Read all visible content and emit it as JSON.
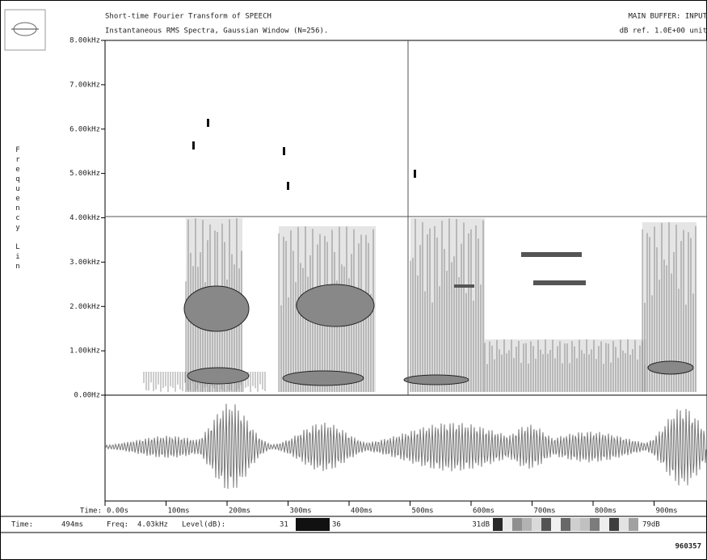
{
  "header": {
    "title": "Short-time Fourier Transform of  SPEECH",
    "subtitle": "Instantaneous RMS Spectra, Gaussian Window (N=256).",
    "buffer": "MAIN BUFFER: INPUT",
    "reference": "dB ref. 1.0E+00 unit"
  },
  "frequency_axis": {
    "title": "Frequency Lin",
    "labels": [
      "8.00kHz",
      "7.00kHz",
      "6.00kHz",
      "5.00kHz",
      "4.00kHz",
      "3.00kHz",
      "2.00kHz",
      "1.00kHz",
      "0.00Hz"
    ]
  },
  "time_axis": {
    "title": "Time:",
    "labels": [
      "0.00s",
      "100ms",
      "200ms",
      "300ms",
      "400ms",
      "500ms",
      "600ms",
      "700ms",
      "800ms",
      "900ms"
    ]
  },
  "status_bar": {
    "time_label": "Time:",
    "time_value": "494ms",
    "freq_label": "Freq:",
    "freq_value": "4.03kHz",
    "level_label": "Level(dB):",
    "level_low": "31",
    "level_high": "36",
    "scale_min": "31dB",
    "scale_max": "79dB"
  },
  "footer": {
    "code": "960357"
  }
}
